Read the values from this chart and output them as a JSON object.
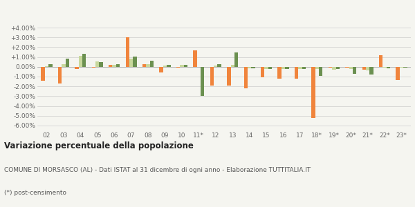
{
  "categories": [
    "02",
    "03",
    "04",
    "05",
    "06",
    "07",
    "08",
    "09",
    "10",
    "11*",
    "12",
    "13",
    "14",
    "15",
    "16",
    "17",
    "18*",
    "19*",
    "20*",
    "21*",
    "22*",
    "23*"
  ],
  "morsasco": [
    -1.4,
    -1.7,
    -0.25,
    -0.1,
    0.2,
    3.05,
    0.3,
    -0.55,
    -0.1,
    1.7,
    -1.9,
    -1.9,
    -2.2,
    -1.1,
    -1.2,
    -1.2,
    -5.25,
    -0.1,
    -0.1,
    -0.3,
    1.2,
    -1.35
  ],
  "provincia": [
    0.05,
    0.25,
    1.1,
    0.55,
    0.2,
    0.85,
    0.3,
    0.1,
    0.2,
    0.0,
    0.15,
    0.2,
    -0.15,
    -0.2,
    -0.2,
    -0.2,
    -0.2,
    -0.3,
    -0.25,
    -0.4,
    -0.1,
    -0.1
  ],
  "piemonte": [
    0.3,
    0.85,
    1.35,
    0.45,
    0.3,
    1.05,
    0.6,
    0.2,
    0.2,
    -3.0,
    0.3,
    1.5,
    -0.15,
    -0.2,
    -0.2,
    -0.2,
    -0.9,
    -0.2,
    -0.7,
    -0.8,
    -0.15,
    -0.05
  ],
  "color_morsasco": "#f0843c",
  "color_provincia": "#c8d89c",
  "color_piemonte": "#6b9050",
  "bg_color": "#f5f5f0",
  "title_bold": "Variazione percentuale della popolazione",
  "subtitle": "COMUNE DI MORSASCO (AL) - Dati ISTAT al 31 dicembre di ogni anno - Elaborazione TUTTITALIA.IT",
  "footnote": "(*) post-censimento",
  "ylim": [
    -6.5,
    4.5
  ],
  "yticks": [
    -6.0,
    -5.0,
    -4.0,
    -3.0,
    -2.0,
    -1.0,
    0.0,
    1.0,
    2.0,
    3.0,
    4.0
  ],
  "ytick_labels": [
    "-6.00%",
    "-5.00%",
    "-4.00%",
    "-3.00%",
    "-2.00%",
    "-1.00%",
    "0.00%",
    "+1.00%",
    "+2.00%",
    "+3.00%",
    "+4.00%"
  ]
}
